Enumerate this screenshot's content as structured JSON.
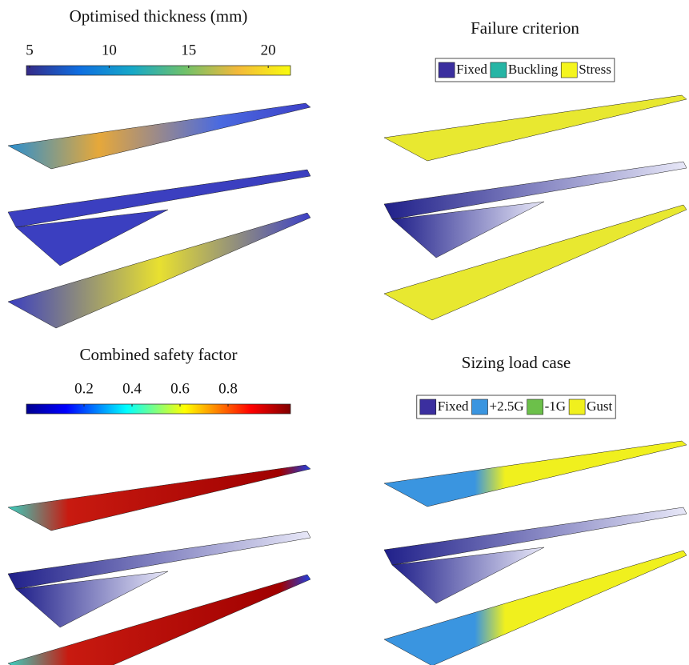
{
  "panels": [
    {
      "title": "Optimised thickness (mm)",
      "colorbar": {
        "lim": [
          4.8,
          21.4
        ],
        "ticks": [
          5,
          10,
          15,
          20
        ]
      }
    },
    {
      "title": "Failure criterion",
      "legend": [
        {
          "label": "Fixed",
          "color": "#3b2f9f"
        },
        {
          "label": "Buckling",
          "color": "#26b5a5"
        },
        {
          "label": "Stress",
          "color": "#f5f51e"
        }
      ]
    },
    {
      "title": "Combined safety factor",
      "colorbar": {
        "lim": [
          -0.04,
          1.06
        ],
        "ticks": [
          0.2,
          0.4,
          0.6,
          0.8
        ]
      }
    },
    {
      "title": "Sizing load case",
      "legend": [
        {
          "label": "Fixed",
          "color": "#3b2f9f"
        },
        {
          "label": "+2.5G",
          "color": "#3a95e0"
        },
        {
          "label": "-1G",
          "color": "#6cc04a"
        },
        {
          "label": "Gust",
          "color": "#f0f01e"
        }
      ]
    }
  ]
}
